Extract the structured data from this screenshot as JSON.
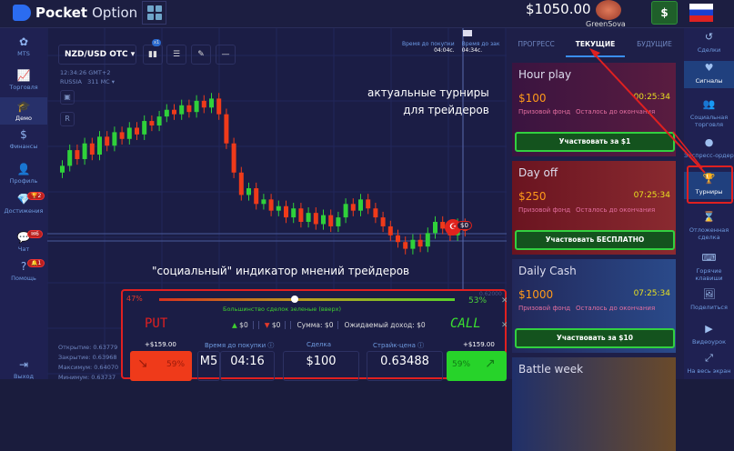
{
  "header": {
    "brand_bold": "Pocket",
    "brand_light": "Option",
    "balance": "$1050.00",
    "username": "GreenSova",
    "deposit_label": "$"
  },
  "left_nav": [
    {
      "label": "MTS",
      "icon": "mts-icon",
      "glyph": "✿"
    },
    {
      "label": "Торговля",
      "icon": "chart-icon",
      "glyph": "📈"
    },
    {
      "label": "Демо",
      "icon": "graduation-cap-icon",
      "glyph": "🎓",
      "active": true
    },
    {
      "label": "Финансы",
      "icon": "dollar-icon",
      "glyph": "$"
    },
    {
      "label": "Профиль",
      "icon": "user-icon",
      "glyph": "👤"
    },
    {
      "label": "Достижения",
      "icon": "diamond-icon",
      "glyph": "💎",
      "badge": "🏆2"
    },
    {
      "label": "Чат",
      "icon": "chat-icon",
      "glyph": "💬",
      "badge": "✉6"
    },
    {
      "label": "Помощь",
      "icon": "help-icon",
      "glyph": "?",
      "badge": "🔔1"
    },
    {
      "label": "Выход",
      "icon": "logout-icon",
      "glyph": "⇥"
    }
  ],
  "chart": {
    "pair": "NZD/USD OTC",
    "indicator_badge": "x1",
    "time": "12:34:26 GMT+2",
    "region": "RUSSIA",
    "ping": "311 MC ▾",
    "buy_time_label": "Время до покупки",
    "buy_time": "04:04с.",
    "close_time_label": "Время до зак",
    "close_time": "04:34с.",
    "trade_marker": "$0",
    "open": "Открытие: 0.63779",
    "close": "Закрытие: 0.63968",
    "max": "Максимум: 0.64070",
    "min": "Минимум: 0.63737",
    "price_label": "0.62000",
    "closes": [
      0.6375,
      0.6382,
      0.6378,
      0.6385,
      0.638,
      0.6388,
      0.6384,
      0.639,
      0.6387,
      0.6392,
      0.6389,
      0.6395,
      0.6393,
      0.6397,
      0.64,
      0.6398,
      0.6402,
      0.6399,
      0.6404,
      0.6401,
      0.6405,
      0.6398,
      0.6385,
      0.6372,
      0.6362,
      0.6365,
      0.6358,
      0.636,
      0.6355,
      0.6357,
      0.6352,
      0.6356,
      0.635,
      0.6354,
      0.6349,
      0.6353,
      0.6348,
      0.6352,
      0.6358,
      0.6355,
      0.636,
      0.6356,
      0.6352,
      0.6348,
      0.6344,
      0.6341,
      0.6338,
      0.6342,
      0.6339,
      0.6345,
      0.635,
      0.6347,
      0.6344,
      0.6349,
      0.6346
    ]
  },
  "annotations": {
    "tournaments_line1": "актуальные турниры",
    "tournaments_line2": "для трейдеров",
    "social": "\"социальный\" индикатор мнений трейдеров",
    "put": "PUT",
    "call": "CALL"
  },
  "sentiment": {
    "put_percent": "47%",
    "call_percent": "53%",
    "call_fraction": 0.53,
    "message": "Большинство сделок зеленые (вверх)"
  },
  "trade": {
    "up": "$0",
    "down": "$0",
    "sum": "Сумма: $0",
    "expected": "Ожидаемый доход: $0",
    "put_payout": "+$159.00",
    "call_payout": "+$159.00",
    "put_percent": "59%",
    "call_percent": "59%",
    "time_label": "Время до покупки ⓘ",
    "timeframe": "M5",
    "time": "04:16",
    "amount_label": "Сделка",
    "amount": "$100",
    "strike_label": "Страйк-цена ⓘ",
    "strike": "0.63488"
  },
  "tournaments": {
    "tabs": [
      {
        "label": "ПРОГРЕСС"
      },
      {
        "label": "ТЕКУЩИЕ",
        "active": true
      },
      {
        "label": "БУДУЩИЕ"
      }
    ],
    "cards": [
      {
        "title": "Hour play",
        "prize": "$100",
        "timer": "00:25:34",
        "prize_label": "Призовой фонд",
        "remaining_label": "Осталось до окончания",
        "button": "Участвовать за $1"
      },
      {
        "title": "Day off",
        "prize": "$250",
        "timer": "07:25:34",
        "prize_label": "Призовой фонд",
        "remaining_label": "Осталось до окончания",
        "button": "Участвовать БЕСПЛАТНО"
      },
      {
        "title": "Daily Cash",
        "prize": "$1000",
        "timer": "07:25:34",
        "prize_label": "Призовой фонд",
        "remaining_label": "Осталось до окончания",
        "button": "Участвовать за $10"
      },
      {
        "title": "Battle week"
      }
    ]
  },
  "right_nav": [
    {
      "label": "Сделки",
      "glyph": "↺"
    },
    {
      "label": "Сигналы",
      "glyph": "♥",
      "active": true
    },
    {
      "label": "Социальная торговля",
      "glyph": "👥"
    },
    {
      "label": "Экспресс-ордер",
      "glyph": "●"
    },
    {
      "label": "Турниры",
      "glyph": "🏆",
      "active": true
    },
    {
      "label": "Отложенная сделка",
      "glyph": "⌛"
    },
    {
      "label": "Горячие клавиши",
      "glyph": "⌨"
    },
    {
      "label": "Поделиться",
      "glyph": "🖼"
    },
    {
      "label": "Видеоурок",
      "glyph": "▶"
    },
    {
      "label": "На весь экран",
      "glyph": "⤢"
    }
  ],
  "colors": {
    "up": "#2fd13a",
    "down": "#ef3a1a",
    "accent": "#3a8ef0",
    "highlight": "#e02020"
  }
}
